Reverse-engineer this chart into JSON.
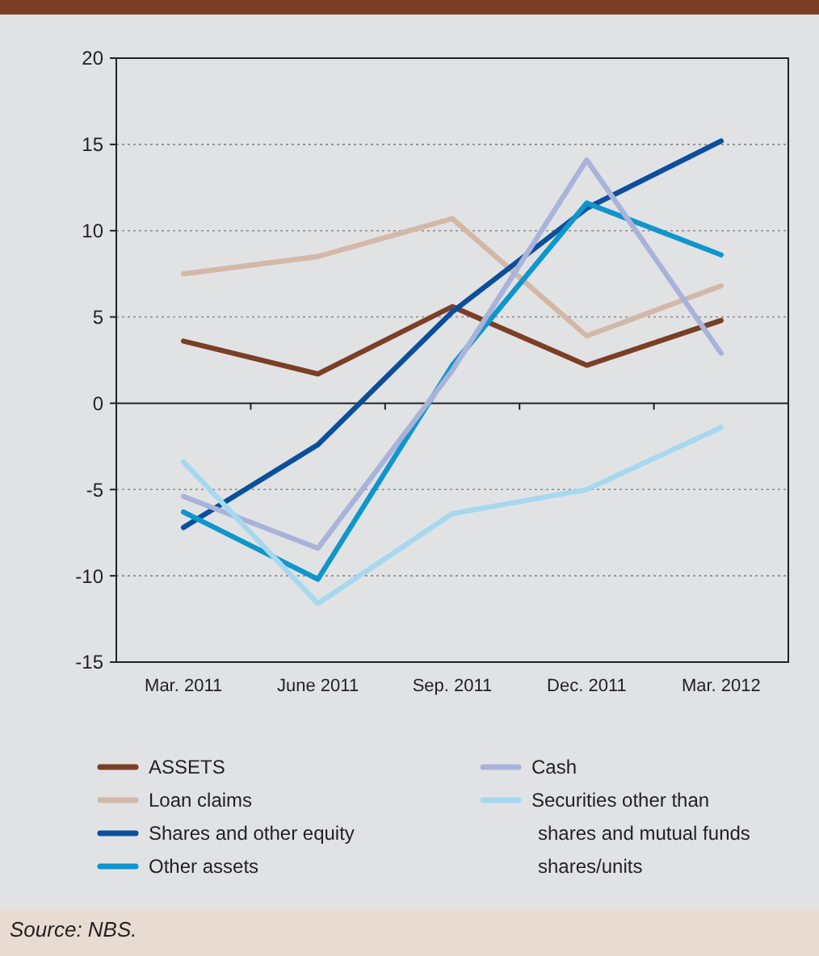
{
  "chart_data": {
    "type": "line",
    "categories": [
      "Mar. 2011",
      "June 2011",
      "Sep. 2011",
      "Dec. 2011",
      "Mar. 2012"
    ],
    "series": [
      {
        "name": "ASSETS",
        "color": "#7b3f26",
        "values": [
          3.6,
          1.7,
          5.6,
          2.2,
          4.8
        ]
      },
      {
        "name": "Loan claims",
        "color": "#d3b8a8",
        "values": [
          7.5,
          8.5,
          10.7,
          3.9,
          6.8
        ]
      },
      {
        "name": "Shares and other equity",
        "color": "#0b4f9c",
        "values": [
          -7.2,
          -2.4,
          5.3,
          11.3,
          15.2
        ]
      },
      {
        "name": "Other assets",
        "color": "#0f96cc",
        "values": [
          -6.3,
          -10.2,
          2.2,
          11.6,
          8.6
        ]
      },
      {
        "name": "Cash",
        "color": "#a9b3da",
        "values": [
          -5.4,
          -8.4,
          1.9,
          14.1,
          2.9
        ]
      },
      {
        "name": "Securities other than shares and mutual funds shares/units",
        "color": "#a6d8f0",
        "values": [
          -3.4,
          -11.6,
          -6.4,
          -5.0,
          -1.4
        ]
      }
    ],
    "ylim": [
      -15,
      20
    ],
    "yticks": [
      -15,
      -10,
      -5,
      0,
      5,
      10,
      15,
      20
    ],
    "grid": "y",
    "legend": "bottom",
    "marker": "none",
    "line_style": "solid",
    "annotations": [
      "Source: NBS."
    ]
  }
}
